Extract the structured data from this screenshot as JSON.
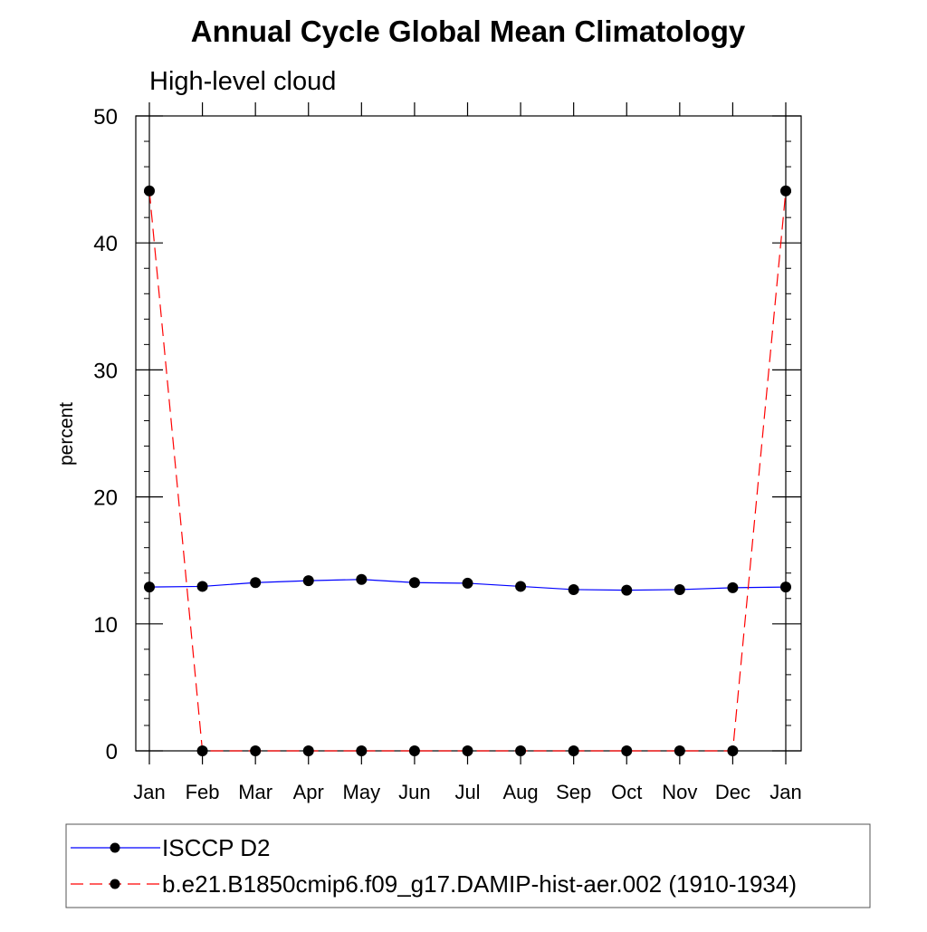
{
  "chart_data": {
    "type": "line",
    "title": "Annual Cycle Global Mean Climatology",
    "subtitle": "High-level cloud",
    "xlabel": "",
    "ylabel": "percent",
    "ylim": [
      0,
      50
    ],
    "yticks": [
      0,
      10,
      20,
      30,
      40,
      50
    ],
    "categories": [
      "Jan",
      "Feb",
      "Mar",
      "Apr",
      "May",
      "Jun",
      "Jul",
      "Aug",
      "Sep",
      "Oct",
      "Nov",
      "Dec",
      "Jan"
    ],
    "grid": false,
    "legend_position": "bottom",
    "series": [
      {
        "name": "ISCCP D2",
        "color": "#0000ff",
        "line_style": "solid",
        "marker": "filled-circle",
        "values": [
          12.9,
          12.95,
          13.25,
          13.4,
          13.5,
          13.25,
          13.2,
          12.95,
          12.7,
          12.65,
          12.7,
          12.85,
          12.9
        ]
      },
      {
        "name": "b.e21.B1850cmip6.f09_g17.DAMIP-hist-aer.002 (1910-1934)",
        "color": "#ff0000",
        "line_style": "dashed",
        "marker": "filled-circle",
        "values": [
          44.1,
          0,
          0,
          0,
          0,
          0,
          0,
          0,
          0,
          0,
          0,
          0,
          44.1
        ]
      }
    ]
  }
}
